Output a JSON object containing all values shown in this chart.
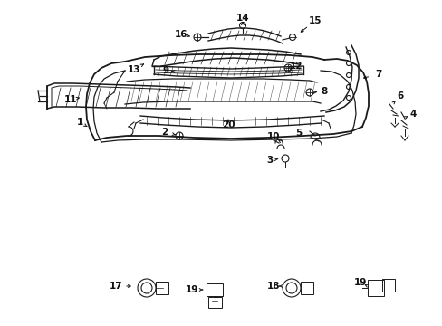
{
  "bg_color": "#ffffff",
  "line_color": "#1a1a1a",
  "lw": 1.1
}
